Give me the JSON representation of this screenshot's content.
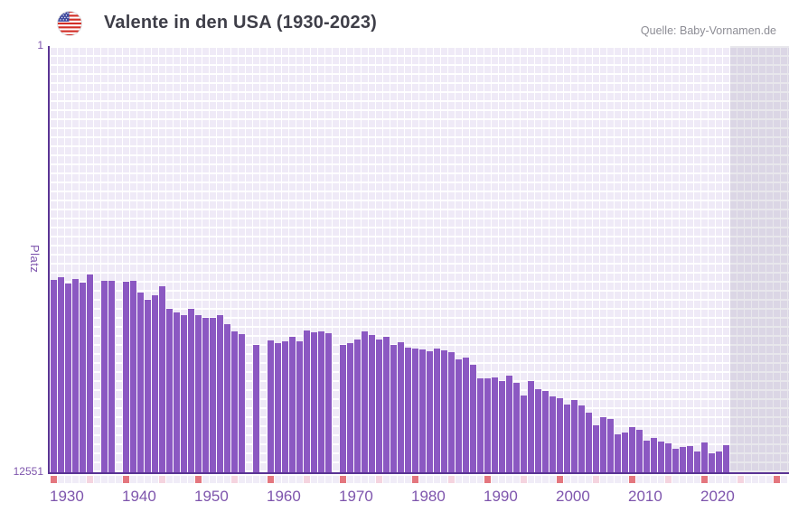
{
  "header": {
    "title": "Valente in den USA (1930-2023)",
    "source": "Quelle: Baby-Vornamen.de",
    "flag": "us-flag-icon"
  },
  "chart_data": {
    "type": "bar",
    "title": "Valente in den USA (1930-2023)",
    "ylabel": "Platz",
    "y_axis": {
      "top_tick": "1",
      "bottom_tick": "12551",
      "min": 1,
      "max": 12551,
      "inverted": true
    },
    "x_tick_labels": [
      "1930",
      "1940",
      "1950",
      "1960",
      "1970",
      "1980",
      "1990",
      "2000",
      "2010",
      "2020"
    ],
    "x_domain_years": [
      1930,
      2031
    ],
    "last_data_year": 2023,
    "missing_years": [
      1936,
      1939,
      1957,
      1959,
      1969
    ],
    "colors": {
      "bar": "#8b58c2",
      "axis": "#5a3494",
      "grid_cell": "#efeaf7",
      "tick_label": "#7e55ad",
      "decade_tick_cell": "#e4767e",
      "half_decade_tick_cell": "#f5d4df",
      "plain_tick_cell": "#f0ecf7",
      "future_shade": "rgba(152,144,168,0.22)"
    },
    "points": [
      {
        "year": 1930,
        "rank": 6870
      },
      {
        "year": 1931,
        "rank": 6785
      },
      {
        "year": 1932,
        "rank": 6985
      },
      {
        "year": 1933,
        "rank": 6855
      },
      {
        "year": 1934,
        "rank": 6950
      },
      {
        "year": 1935,
        "rank": 6715
      },
      {
        "year": 1936,
        "rank": null
      },
      {
        "year": 1937,
        "rank": 6890
      },
      {
        "year": 1938,
        "rank": 6890
      },
      {
        "year": 1939,
        "rank": null
      },
      {
        "year": 1940,
        "rank": 6935
      },
      {
        "year": 1941,
        "rank": 6900
      },
      {
        "year": 1942,
        "rank": 7250
      },
      {
        "year": 1943,
        "rank": 7450
      },
      {
        "year": 1944,
        "rank": 7315
      },
      {
        "year": 1945,
        "rank": 7065
      },
      {
        "year": 1946,
        "rank": 7715
      },
      {
        "year": 1947,
        "rank": 7830
      },
      {
        "year": 1948,
        "rank": 7900
      },
      {
        "year": 1949,
        "rank": 7720
      },
      {
        "year": 1950,
        "rank": 7900
      },
      {
        "year": 1951,
        "rank": 7980
      },
      {
        "year": 1952,
        "rank": 7980
      },
      {
        "year": 1953,
        "rank": 7905
      },
      {
        "year": 1954,
        "rank": 8180
      },
      {
        "year": 1955,
        "rank": 8385
      },
      {
        "year": 1956,
        "rank": 8465
      },
      {
        "year": 1957,
        "rank": null
      },
      {
        "year": 1958,
        "rank": 8775
      },
      {
        "year": 1959,
        "rank": null
      },
      {
        "year": 1960,
        "rank": 8650
      },
      {
        "year": 1961,
        "rank": 8730
      },
      {
        "year": 1962,
        "rank": 8670
      },
      {
        "year": 1963,
        "rank": 8550
      },
      {
        "year": 1964,
        "rank": 8675
      },
      {
        "year": 1965,
        "rank": 8345
      },
      {
        "year": 1966,
        "rank": 8410
      },
      {
        "year": 1967,
        "rank": 8380
      },
      {
        "year": 1968,
        "rank": 8440
      },
      {
        "year": 1969,
        "rank": null
      },
      {
        "year": 1970,
        "rank": 8785
      },
      {
        "year": 1971,
        "rank": 8730
      },
      {
        "year": 1972,
        "rank": 8625
      },
      {
        "year": 1973,
        "rank": 8395
      },
      {
        "year": 1974,
        "rank": 8490
      },
      {
        "year": 1975,
        "rank": 8615
      },
      {
        "year": 1976,
        "rank": 8550
      },
      {
        "year": 1977,
        "rank": 8775
      },
      {
        "year": 1978,
        "rank": 8710
      },
      {
        "year": 1979,
        "rank": 8850
      },
      {
        "year": 1980,
        "rank": 8875
      },
      {
        "year": 1981,
        "rank": 8925
      },
      {
        "year": 1982,
        "rank": 8970
      },
      {
        "year": 1983,
        "rank": 8890
      },
      {
        "year": 1984,
        "rank": 8950
      },
      {
        "year": 1985,
        "rank": 8995
      },
      {
        "year": 1986,
        "rank": 9205
      },
      {
        "year": 1987,
        "rank": 9155
      },
      {
        "year": 1988,
        "rank": 9365
      },
      {
        "year": 1989,
        "rank": 9755
      },
      {
        "year": 1990,
        "rank": 9755
      },
      {
        "year": 1991,
        "rank": 9730
      },
      {
        "year": 1992,
        "rank": 9835
      },
      {
        "year": 1993,
        "rank": 9685
      },
      {
        "year": 1994,
        "rank": 9890
      },
      {
        "year": 1995,
        "rank": 10275
      },
      {
        "year": 1996,
        "rank": 9835
      },
      {
        "year": 1997,
        "rank": 10080
      },
      {
        "year": 1998,
        "rank": 10145
      },
      {
        "year": 1999,
        "rank": 10300
      },
      {
        "year": 2000,
        "rank": 10345
      },
      {
        "year": 2001,
        "rank": 10540
      },
      {
        "year": 2002,
        "rank": 10390
      },
      {
        "year": 2003,
        "rank": 10560
      },
      {
        "year": 2004,
        "rank": 10770
      },
      {
        "year": 2005,
        "rank": 11155
      },
      {
        "year": 2006,
        "rank": 10905
      },
      {
        "year": 2007,
        "rank": 10970
      },
      {
        "year": 2008,
        "rank": 11415
      },
      {
        "year": 2009,
        "rank": 11350
      },
      {
        "year": 2010,
        "rank": 11200
      },
      {
        "year": 2011,
        "rank": 11285
      },
      {
        "year": 2012,
        "rank": 11595
      },
      {
        "year": 2013,
        "rank": 11505
      },
      {
        "year": 2014,
        "rank": 11630
      },
      {
        "year": 2015,
        "rank": 11675
      },
      {
        "year": 2016,
        "rank": 11825
      },
      {
        "year": 2017,
        "rank": 11780
      },
      {
        "year": 2018,
        "rank": 11745
      },
      {
        "year": 2019,
        "rank": 11915
      },
      {
        "year": 2020,
        "rank": 11650
      },
      {
        "year": 2021,
        "rank": 11960
      },
      {
        "year": 2022,
        "rank": 11900
      },
      {
        "year": 2023,
        "rank": 11720
      }
    ]
  }
}
